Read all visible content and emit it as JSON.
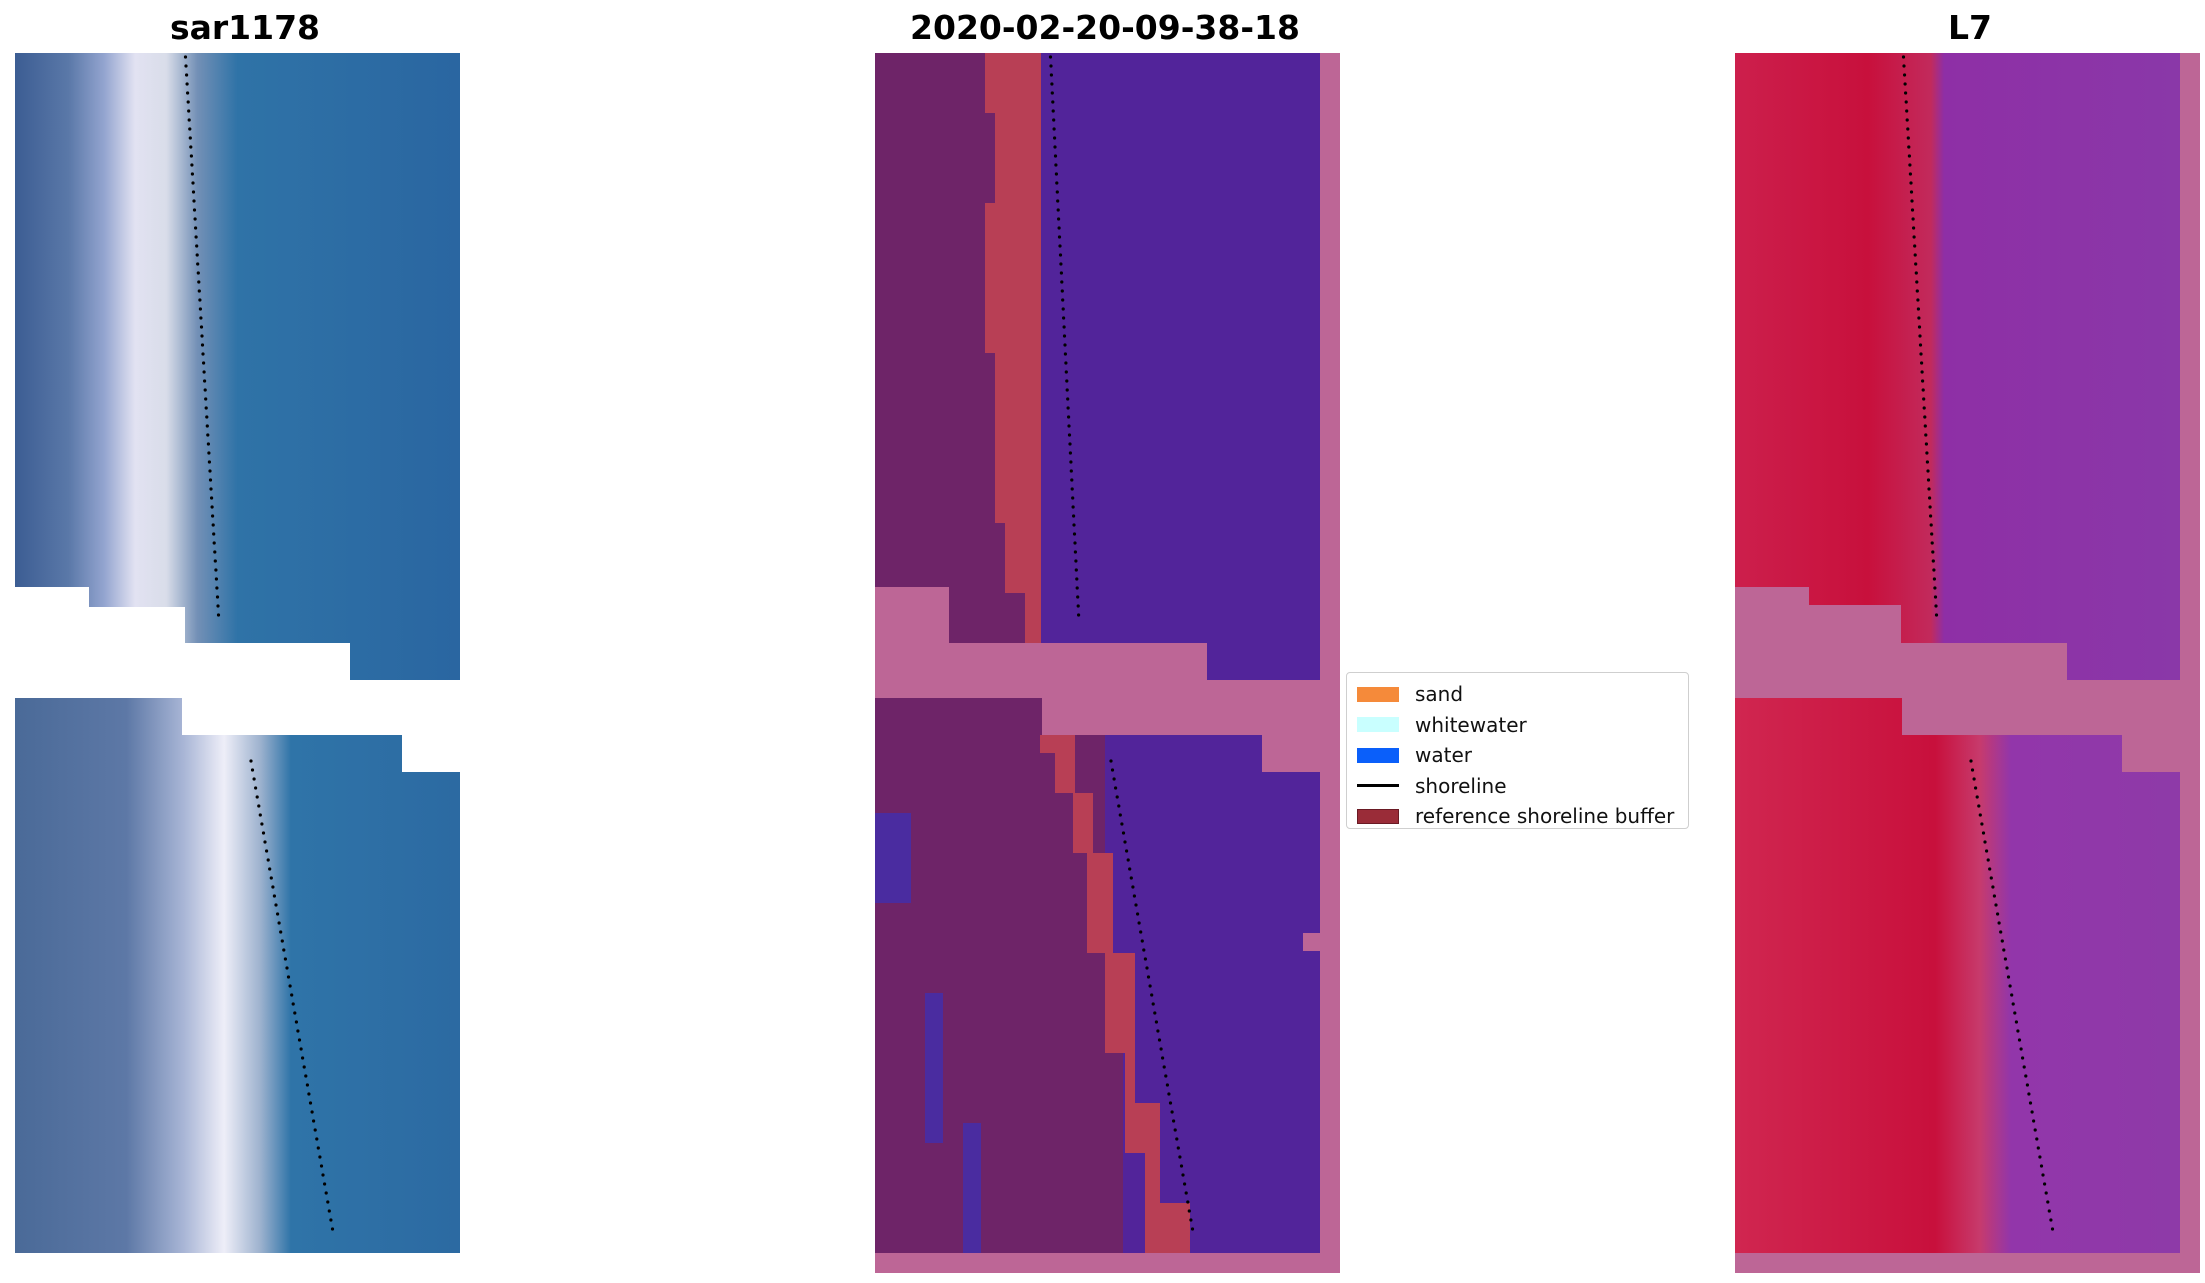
{
  "panels": [
    {
      "id": "rgb",
      "title": "sar1178"
    },
    {
      "id": "classified",
      "title": "2020-02-20-09-38-18"
    },
    {
      "id": "index",
      "title": "L7"
    }
  ],
  "legend": {
    "items": [
      {
        "label": "sand",
        "color": "#f58a3a",
        "kind": "patch"
      },
      {
        "label": "whitewater",
        "color": "#c9ffff",
        "kind": "patch"
      },
      {
        "label": "water",
        "color": "#0a5ffa",
        "kind": "patch"
      },
      {
        "label": "shoreline",
        "color": "#000000",
        "kind": "line"
      },
      {
        "label": "reference shoreline buffer",
        "color": "#9a2c38",
        "kind": "patch"
      }
    ]
  },
  "colors": {
    "rgb_water": "#2a69a4",
    "rgb_land": "#4a6a9a",
    "rgb_surf": "#dcdcee",
    "class_land": "#6e2468",
    "class_buffer": "#b83f55",
    "class_water": "#52249a",
    "class_nodata": "#bd6696",
    "index_land": "#c8163e",
    "index_water": "#8a3aa6",
    "index_nodata": "#bd6696"
  }
}
